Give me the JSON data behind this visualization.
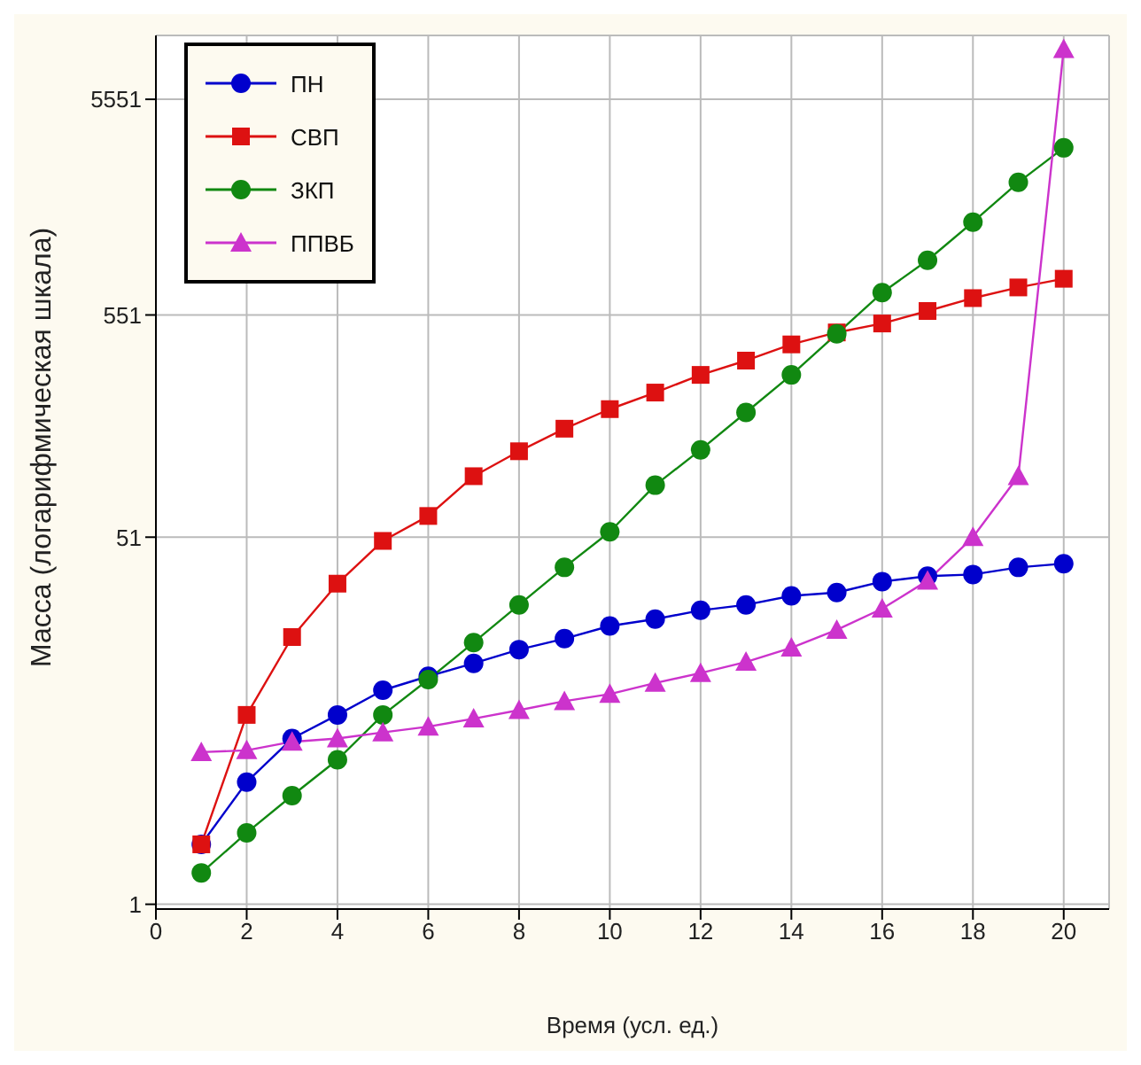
{
  "chart_data": {
    "type": "line",
    "xlabel": "Время (усл. ед.)",
    "ylabel": "Масса (логарифмическая шкала)",
    "x": [
      1,
      2,
      3,
      4,
      5,
      6,
      7,
      8,
      9,
      10,
      11,
      12,
      13,
      14,
      15,
      16,
      17,
      18,
      19,
      20
    ],
    "series": [
      {
        "name": "ПН",
        "color": "#0000cc",
        "marker": "circle",
        "values": [
          1.9,
          3.7,
          5.9,
          7.6,
          9.9,
          11.5,
          13.2,
          15.3,
          17.2,
          19.7,
          21.2,
          23.3,
          24.7,
          27.2,
          28.2,
          31.7,
          33.6,
          34.2,
          36.9,
          38.4
        ]
      },
      {
        "name": "СВП",
        "color": "#dd1111",
        "marker": "square",
        "values": [
          1.9,
          7.6,
          17.5,
          31,
          49,
          64,
          98,
          128,
          163,
          201,
          240,
          290,
          338,
          402,
          457,
          503,
          575,
          660,
          740,
          812
        ]
      },
      {
        "name": "ЗКП",
        "color": "#118811",
        "marker": "circle",
        "values": [
          1.4,
          2.15,
          3.2,
          4.7,
          7.6,
          11.1,
          16.5,
          24.7,
          36.9,
          54,
          89,
          130,
          194,
          290,
          450,
          700,
          990,
          1490,
          2280,
          3300
        ]
      },
      {
        "name": "ППВБ",
        "color": "#cc33cc",
        "marker": "triangle",
        "values": [
          5.1,
          5.2,
          5.7,
          5.9,
          6.3,
          6.7,
          7.3,
          8.0,
          8.8,
          9.5,
          10.7,
          11.9,
          13.4,
          15.6,
          18.9,
          23.7,
          32,
          51,
          98,
          9500
        ]
      }
    ],
    "log": "y",
    "xlim": [
      0,
      21
    ],
    "xticks": [
      0,
      2,
      4,
      6,
      8,
      10,
      12,
      14,
      16,
      18,
      20
    ],
    "ylim": [
      0.95,
      11000
    ],
    "yticks": [
      1,
      51,
      551,
      5551
    ],
    "grid": true,
    "legend": "top left"
  }
}
